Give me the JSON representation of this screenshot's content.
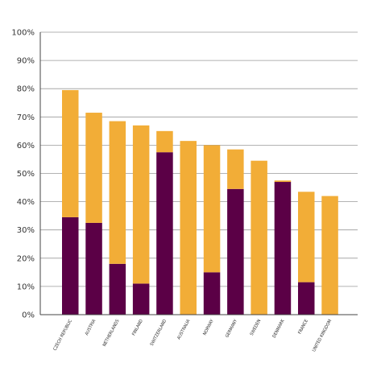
{
  "chart_data": {
    "type": "bar",
    "stacked": true,
    "categories": [
      "CZECH REPUBLIC",
      "AUSTRIA",
      "NETHERLANDS",
      "FINLAND",
      "SWITZERLAND",
      "AUSTRALIA",
      "NORWAY",
      "GERMANY",
      "SWEDEN",
      "DENMARK",
      "FRANCE",
      "UNITED KINGDOM"
    ],
    "series": [
      {
        "values": [
          34.5,
          32.5,
          18,
          11,
          57.5,
          0,
          15,
          44.5,
          0,
          47,
          11.5,
          0
        ]
      },
      {
        "values": [
          45,
          39,
          50.5,
          56,
          7.5,
          61.5,
          45,
          14,
          54.5,
          0.5,
          32,
          42
        ]
      }
    ],
    "ylim": [
      0,
      100
    ],
    "yticks": [
      "0%",
      "10%",
      "20%",
      "30%",
      "40%",
      "50%",
      "60%",
      "70%",
      "80%",
      "90%",
      "100%"
    ],
    "grid": true,
    "legend": "none",
    "colors": {
      "bottom": "#5b0046",
      "top": "#f2ad37",
      "grid": "#9a9a9a",
      "axis": "#444444"
    }
  }
}
